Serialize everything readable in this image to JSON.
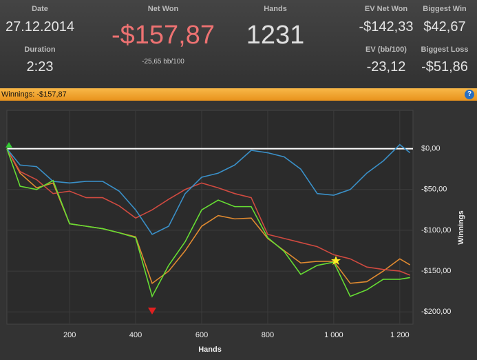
{
  "header": {
    "date_label": "Date",
    "date": "27.12.2014",
    "duration_label": "Duration",
    "duration": "2:23",
    "net_won_label": "Net Won",
    "net_won": "-$157,87",
    "net_won_bb": "-25,65 bb/100",
    "hands_label": "Hands",
    "hands": "1231",
    "ev_net_won_label": "EV Net Won",
    "ev_net_won": "-$142,33",
    "ev_bb_label": "EV (bb/100)",
    "ev_bb": "-23,12",
    "biggest_win_label": "Biggest Win",
    "biggest_win": "$42,67",
    "biggest_loss_label": "Biggest Loss",
    "biggest_loss": "-$51,86"
  },
  "panel_title": "Winnings: -$157,87",
  "chart_data": {
    "type": "line",
    "x_label": "Hands",
    "y_label": "Winnings",
    "x": [
      10,
      50,
      100,
      150,
      200,
      250,
      300,
      350,
      400,
      450,
      500,
      550,
      600,
      650,
      700,
      750,
      800,
      850,
      900,
      950,
      1000,
      1050,
      1100,
      1150,
      1200,
      1231
    ],
    "series": [
      {
        "color": "#e08a30",
        "values": [
          0,
          -30,
          -48,
          -42,
          -92,
          -95,
          -98,
          -103,
          -108,
          -165,
          -150,
          -125,
          -95,
          -82,
          -86,
          -85,
          -110,
          -125,
          -140,
          -138,
          -138,
          -165,
          -163,
          -150,
          -135,
          -142.33
        ]
      },
      {
        "color": "#d04a40",
        "values": [
          0,
          -28,
          -38,
          -55,
          -52,
          -60,
          -60,
          -70,
          -85,
          -75,
          -62,
          -50,
          -42,
          -48,
          -55,
          -60,
          -105,
          -110,
          -115,
          -120,
          -130,
          -135,
          -145,
          -148,
          -150,
          -155
        ]
      },
      {
        "color": "#3a90c8",
        "values": [
          0,
          -20,
          -22,
          -40,
          -42,
          -40,
          -40,
          -52,
          -75,
          -105,
          -95,
          -55,
          -35,
          -30,
          -20,
          -2,
          -5,
          -10,
          -25,
          -55,
          -57,
          -50,
          -30,
          -15,
          5,
          -5
        ]
      },
      {
        "color": "#66dd33",
        "values": [
          0,
          -46,
          -50,
          -39,
          -92,
          -95,
          -98,
          -103,
          -109,
          -181,
          -143,
          -114,
          -75,
          -63,
          -71,
          -71,
          -109,
          -126,
          -154,
          -143,
          -139,
          -181,
          -173,
          -160,
          -160,
          -157.87
        ]
      }
    ],
    "xlim": [
      10,
      1240
    ],
    "ylim": [
      -215,
      47
    ],
    "xticks": [
      200,
      400,
      600,
      800,
      {
        "value": 1000,
        "label": "1 000"
      },
      {
        "value": 1200,
        "label": "1 200"
      }
    ],
    "yticks": [
      {
        "value": 0,
        "label": "$0,00"
      },
      {
        "value": -50,
        "label": "-$50,00"
      },
      {
        "value": -100,
        "label": "-$100,00"
      },
      {
        "value": -150,
        "label": "-$150,00"
      },
      {
        "value": -200,
        "label": "-$200,00"
      }
    ],
    "grid": true
  }
}
